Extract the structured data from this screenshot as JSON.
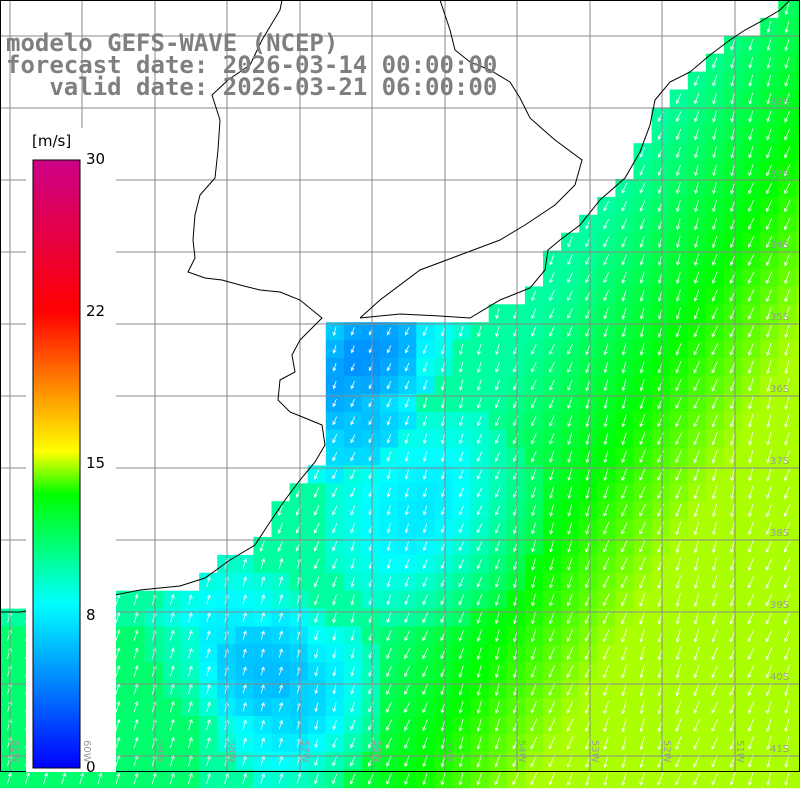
{
  "title": {
    "line1": "modelo GEFS-WAVE (NCEP)",
    "line2": "forecast date: 2026-03-14 00:00:00",
    "line3": "   valid date: 2026-03-21 06:00:00"
  },
  "colorbar": {
    "unit": "[m/s]",
    "ticks": [
      "30",
      "22",
      "15",
      "8",
      "0"
    ],
    "range": [
      0,
      30
    ],
    "colors": [
      "#0000ff",
      "#00ffff",
      "#00ff00",
      "#ffff00",
      "#ff0000",
      "#cc0088"
    ]
  },
  "lat_labels": [
    "32S",
    "33S",
    "34S",
    "35S",
    "36S",
    "37S",
    "38S",
    "39S",
    "40S",
    "41S"
  ],
  "lon_labels": [
    "61W",
    "60W",
    "59W",
    "58W",
    "57W",
    "56W",
    "55W",
    "54W",
    "53W",
    "52W",
    "51W"
  ],
  "map": {
    "lon_range": [
      -61.0,
      -50.0
    ],
    "lat_range": [
      -41.2,
      -29.8
    ],
    "grid_spacing_deg": 1,
    "wind_field": "wind speed at 10 m with direction arrows"
  }
}
